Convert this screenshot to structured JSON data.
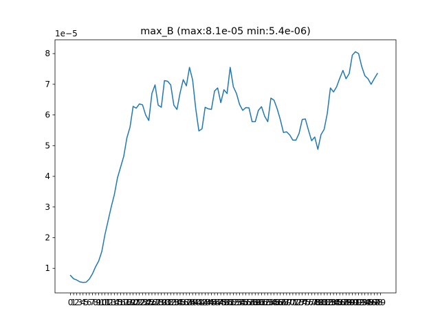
{
  "chart_data": {
    "type": "line",
    "title": "max_B (max:8.1e-05 min:5.4e-06)",
    "xlabel": "",
    "ylabel": "",
    "y_offset_label": "1e−5",
    "y_ticks": [
      1,
      2,
      3,
      4,
      5,
      6,
      7,
      8
    ],
    "y_tick_scale": 1e-05,
    "x_ticks": [
      0,
      1,
      2,
      3,
      4,
      5,
      6,
      7,
      8,
      9,
      10,
      11,
      12,
      13,
      14,
      15,
      16,
      17,
      18,
      19,
      20,
      21,
      22,
      23,
      24,
      25,
      26,
      27,
      28,
      29,
      30,
      31,
      32,
      33,
      34,
      35,
      36,
      37,
      38,
      39,
      40,
      41,
      42,
      43,
      44,
      45,
      46,
      47,
      48,
      49,
      50,
      51,
      52,
      53,
      54,
      55,
      56,
      57,
      58,
      59,
      60,
      61,
      62,
      63,
      64,
      65,
      66,
      67,
      68,
      69,
      70,
      71,
      72,
      73,
      74,
      75,
      76,
      77,
      78,
      79,
      80,
      81,
      82,
      83,
      84,
      85,
      86,
      87,
      88,
      89,
      90,
      91,
      92,
      93,
      94,
      95,
      96,
      97,
      98,
      99
    ],
    "xlim": [
      -4.95,
      103.95
    ],
    "ylim": [
      2e-06,
      8.45e-05
    ],
    "grid": false,
    "line_color": "#1f77b4",
    "series": [
      {
        "values": [
          7.7e-06,
          6.6e-06,
          6.2e-06,
          5.6e-06,
          5.4e-06,
          5.5e-06,
          6.5e-06,
          8.2e-06,
          1.05e-05,
          1.24e-05,
          1.55e-05,
          2.1e-05,
          2.55e-05,
          3e-05,
          3.4e-05,
          3.95e-05,
          4.3e-05,
          4.65e-05,
          5.25e-05,
          5.6e-05,
          6.28e-05,
          6.22e-05,
          6.36e-05,
          6.33e-05,
          6e-05,
          5.82e-05,
          6.7e-05,
          6.98e-05,
          6.32e-05,
          6.25e-05,
          7.12e-05,
          7.1e-05,
          6.98e-05,
          6.32e-05,
          6.18e-05,
          6.72e-05,
          7.15e-05,
          6.95e-05,
          7.55e-05,
          7.14e-05,
          6.2e-05,
          5.48e-05,
          5.55e-05,
          6.25e-05,
          6.2e-05,
          6.18e-05,
          6.78e-05,
          6.88e-05,
          6.4e-05,
          6.82e-05,
          6.7e-05,
          7.55e-05,
          6.92e-05,
          6.7e-05,
          6.34e-05,
          6.15e-05,
          6.24e-05,
          6.23e-05,
          5.78e-05,
          5.78e-05,
          6.15e-05,
          6.27e-05,
          5.96e-05,
          5.78e-05,
          6.55e-05,
          6.48e-05,
          6.2e-05,
          5.85e-05,
          5.43e-05,
          5.45e-05,
          5.35e-05,
          5.18e-05,
          5.18e-05,
          5.4e-05,
          5.85e-05,
          5.87e-05,
          5.5e-05,
          5.16e-05,
          5.28e-05,
          4.88e-05,
          5.36e-05,
          5.53e-05,
          6.05e-05,
          6.88e-05,
          6.75e-05,
          6.92e-05,
          7.2e-05,
          7.45e-05,
          7.18e-05,
          7.35e-05,
          7.95e-05,
          8.06e-05,
          8e-05,
          7.58e-05,
          7.28e-05,
          7.18e-05,
          7e-05,
          7.18e-05,
          7.35e-05
        ]
      }
    ]
  }
}
